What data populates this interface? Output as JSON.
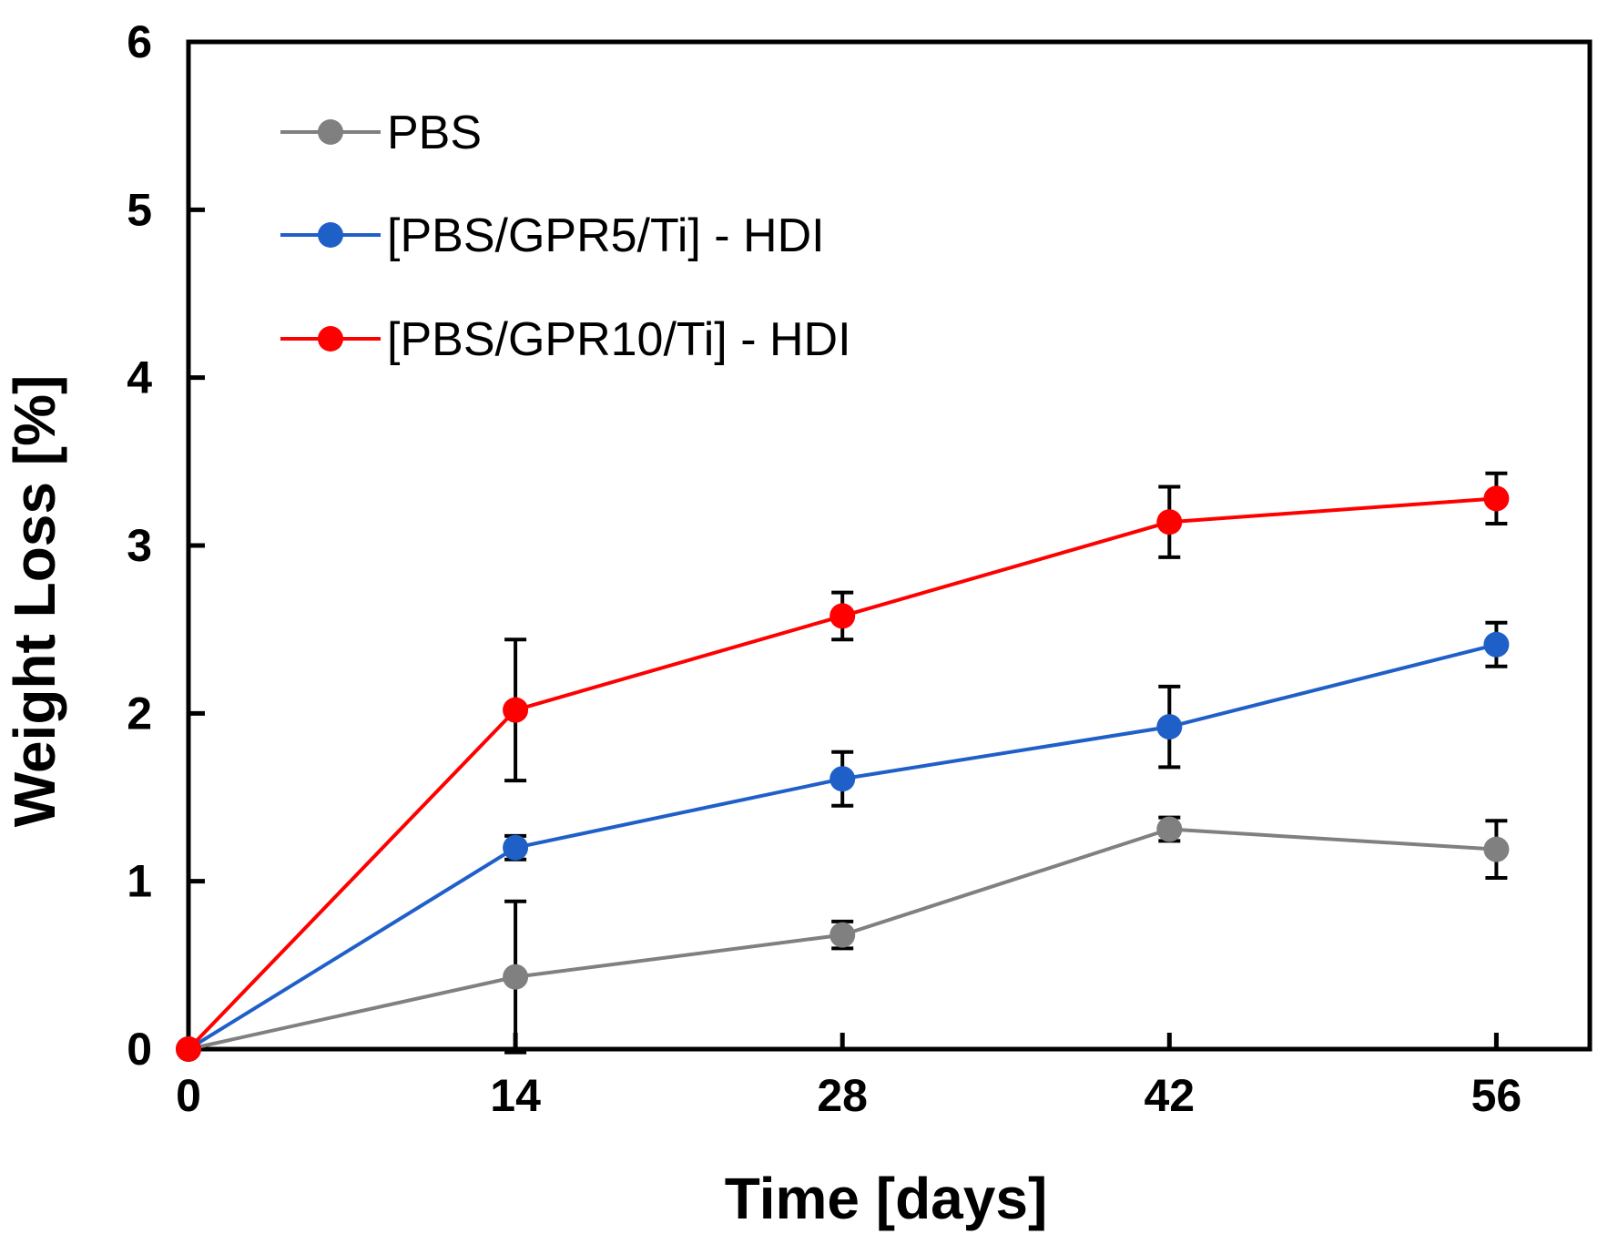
{
  "chart_data": {
    "type": "line",
    "title": "",
    "xlabel": "Time [days]",
    "ylabel": "Weight Loss [%]",
    "x": [
      0,
      14,
      28,
      42,
      56
    ],
    "xticks": [
      0,
      14,
      28,
      42,
      56
    ],
    "xticklabels": [
      "0",
      "14",
      "28",
      "42",
      "56"
    ],
    "yticks": [
      0,
      1,
      2,
      3,
      4,
      5,
      6
    ],
    "yticklabels": [
      "0",
      "1",
      "2",
      "3",
      "4",
      "5",
      "6"
    ],
    "xlim": [
      0,
      60
    ],
    "ylim": [
      0,
      6
    ],
    "grid": false,
    "legend_position": "top-left",
    "series": [
      {
        "name": "PBS",
        "color": "#808080",
        "values": [
          0,
          0.43,
          0.68,
          1.31,
          1.19
        ],
        "errors": [
          0,
          0.45,
          0.08,
          0.07,
          0.17
        ]
      },
      {
        "name": "[PBS/GPR5/Ti] - HDI",
        "color": "#1f5fc8",
        "values": [
          0,
          1.2,
          1.61,
          1.92,
          2.41
        ],
        "errors": [
          0,
          0.07,
          0.16,
          0.24,
          0.13
        ]
      },
      {
        "name": "[PBS/GPR10/Ti] - HDI",
        "color": "#ff0000",
        "values": [
          0,
          2.02,
          2.58,
          3.14,
          3.28
        ],
        "errors": [
          0,
          0.42,
          0.14,
          0.21,
          0.15
        ]
      }
    ]
  }
}
